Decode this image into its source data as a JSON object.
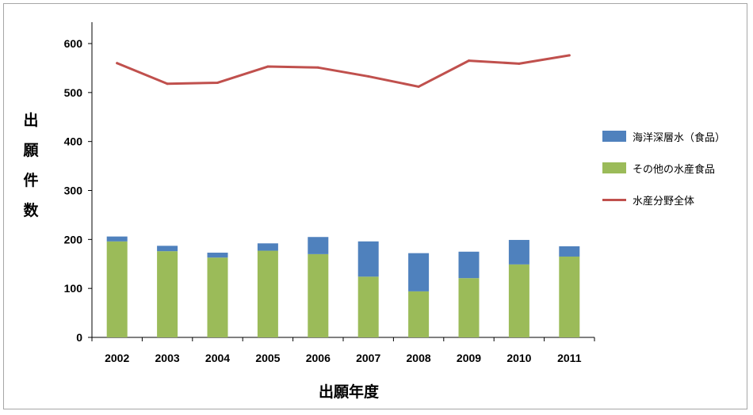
{
  "chart_data": {
    "type": "bar",
    "title": "",
    "xlabel": "出願年度",
    "ylabel_chars": [
      "出",
      "願",
      "件",
      "数"
    ],
    "ylim": [
      0,
      600
    ],
    "yticks": [
      0,
      100,
      200,
      300,
      400,
      500,
      600
    ],
    "categories": [
      "2002",
      "2003",
      "2004",
      "2005",
      "2006",
      "2007",
      "2008",
      "2009",
      "2010",
      "2011"
    ],
    "series": [
      {
        "name": "その他の水産食品",
        "kind": "stacked-bar-bottom",
        "color": "#9bbb59",
        "values": [
          196,
          176,
          163,
          177,
          170,
          124,
          94,
          121,
          149,
          165
        ]
      },
      {
        "name": "海洋深層水（食品）",
        "kind": "stacked-bar-top",
        "color": "#4f81bd",
        "values": [
          10,
          11,
          10,
          15,
          35,
          72,
          78,
          54,
          50,
          21
        ]
      },
      {
        "name": "水産分野全体",
        "kind": "line",
        "color": "#c0504d",
        "values": [
          560,
          518,
          520,
          553,
          551,
          533,
          512,
          565,
          559,
          576
        ]
      }
    ],
    "legend": {
      "placement": "right",
      "order": [
        "海洋深層水（食品）",
        "その他の水産食品",
        "水産分野全体"
      ]
    },
    "grid": false
  }
}
